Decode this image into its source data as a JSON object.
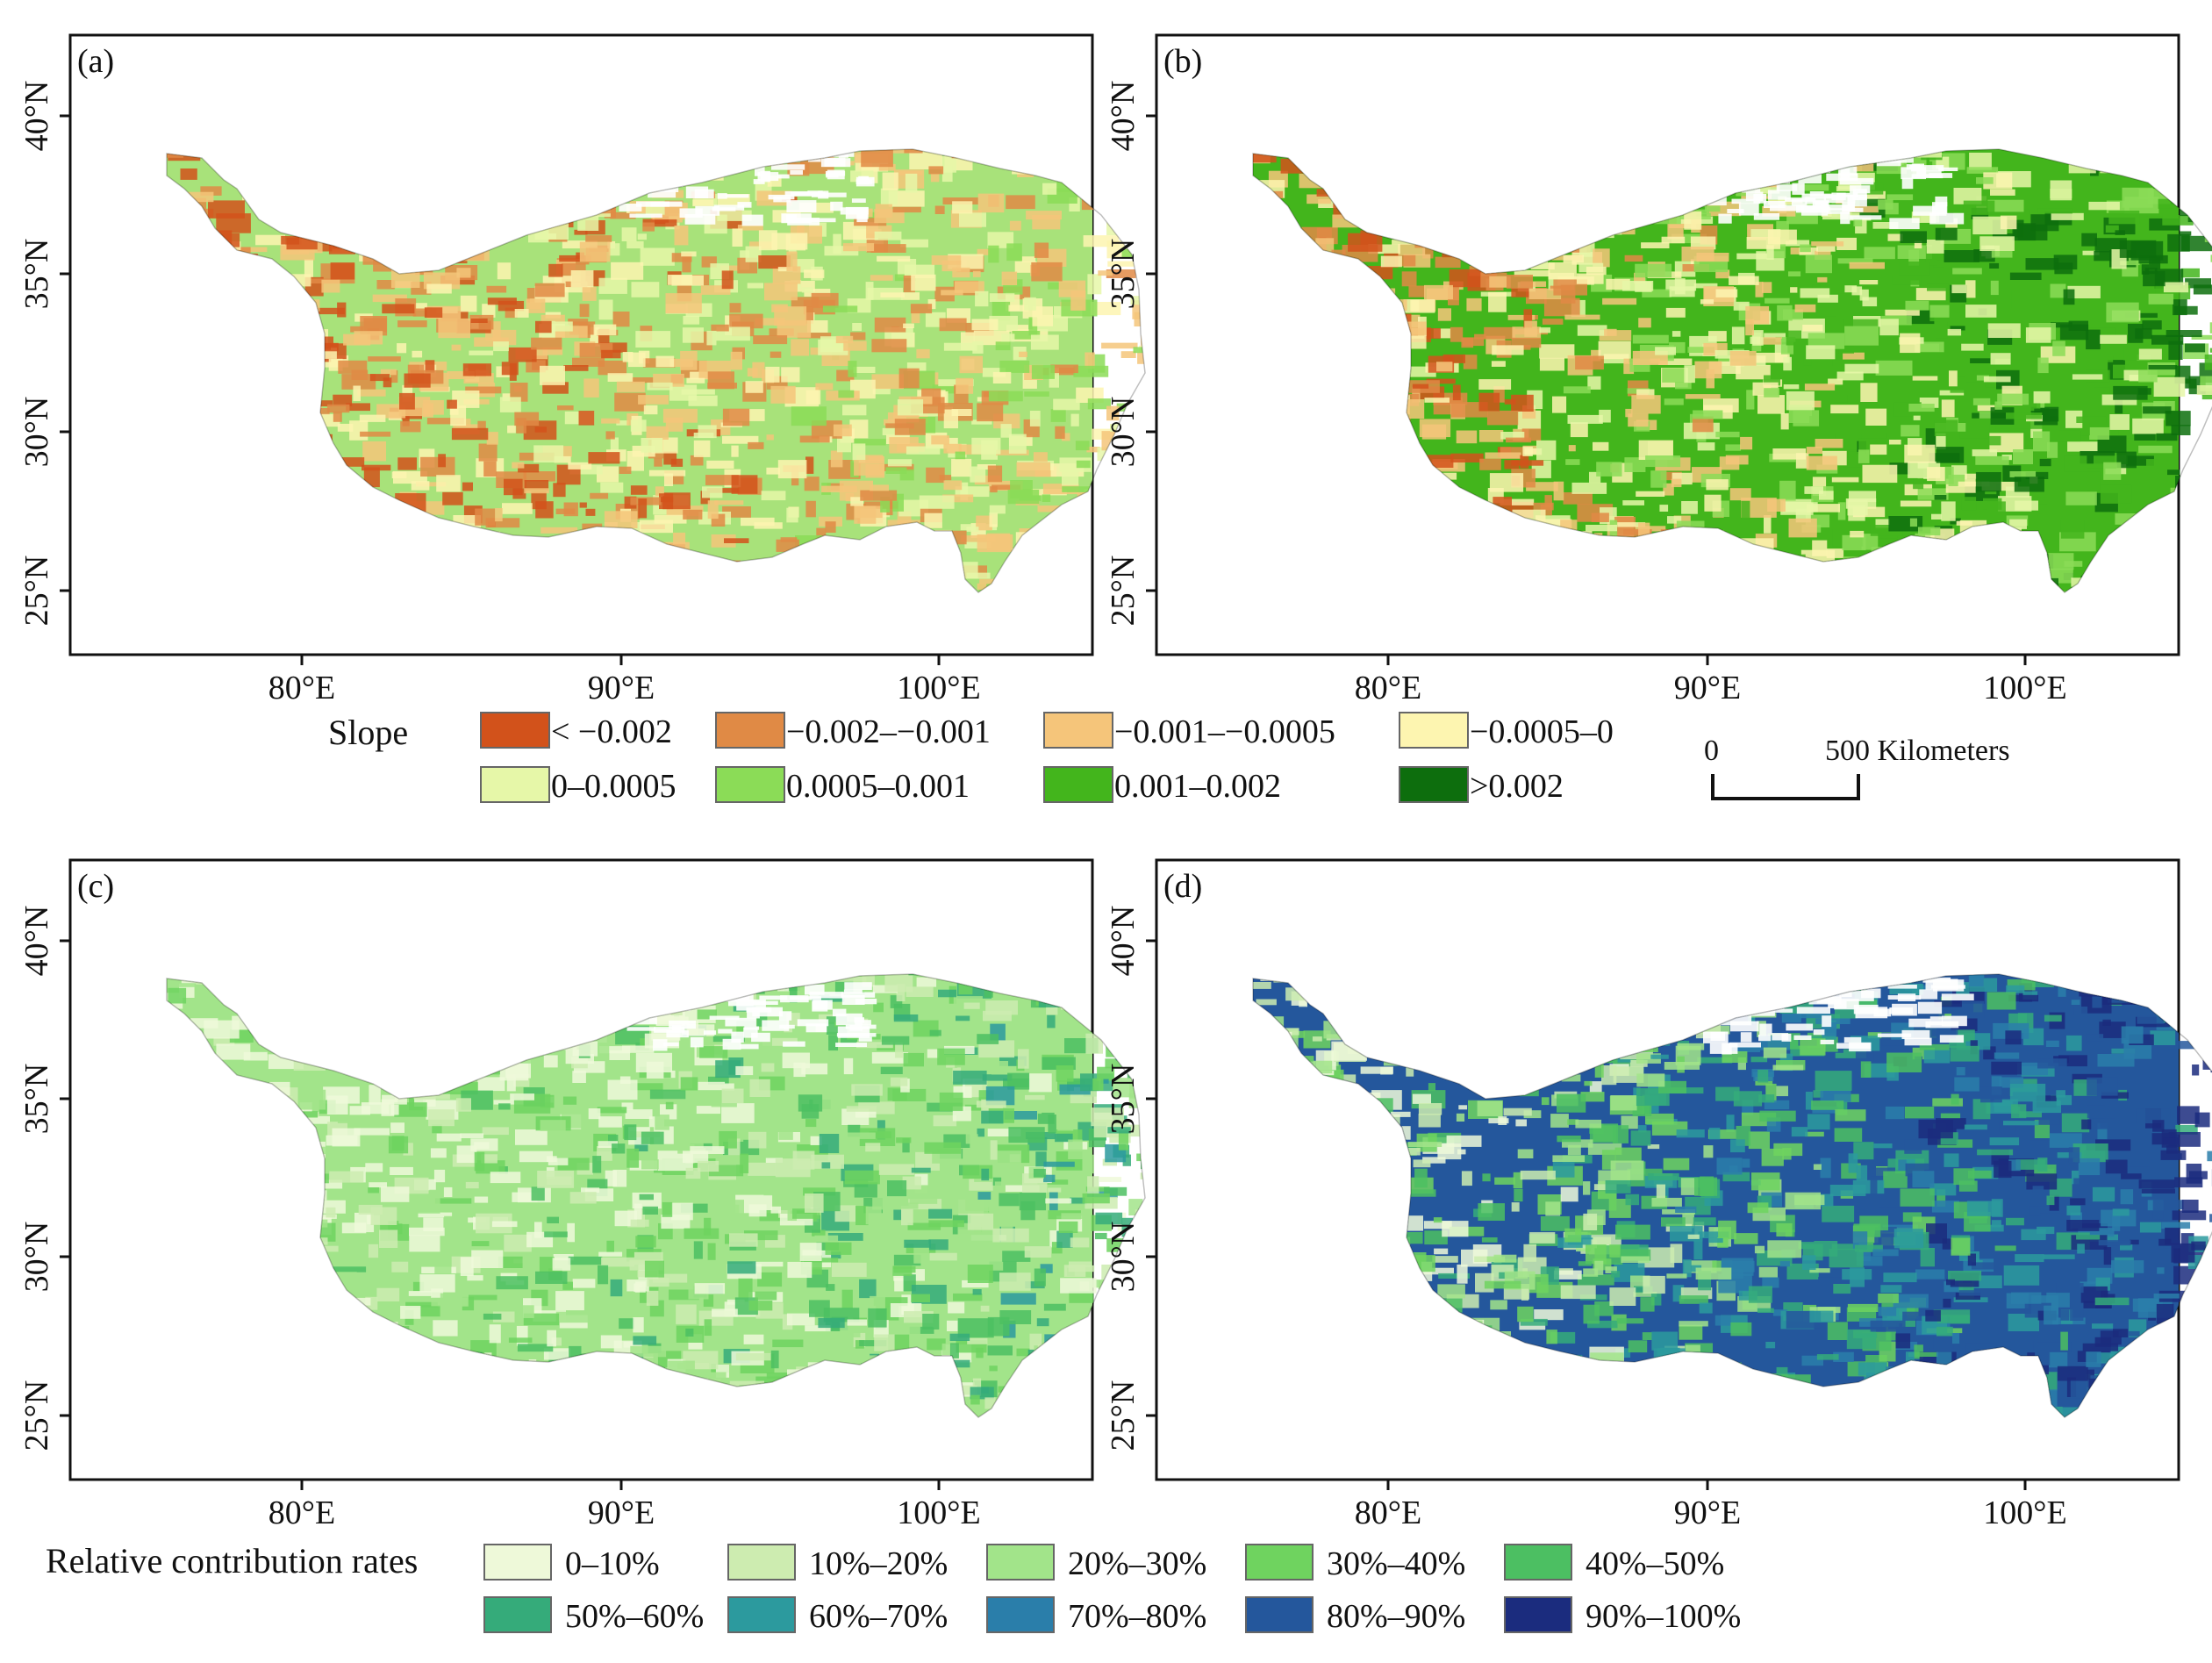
{
  "panels": [
    {
      "id": "a",
      "label": "(a)",
      "scheme": "slope",
      "intensity": 0.35
    },
    {
      "id": "b",
      "label": "(b)",
      "scheme": "slope",
      "intensity": 0.75
    },
    {
      "id": "c",
      "label": "(c)",
      "scheme": "contrib",
      "intensity": 0.3
    },
    {
      "id": "d",
      "label": "(d)",
      "scheme": "contrib",
      "intensity": 0.8
    }
  ],
  "axes": {
    "lat_labels": [
      "40°N",
      "35°N",
      "30°N",
      "25°N"
    ],
    "lon_labels": [
      "80°E",
      "90°E",
      "100°E"
    ]
  },
  "slope_legend": {
    "title": "Slope",
    "items": [
      {
        "label": "< −0.002",
        "color": "#d2521b"
      },
      {
        "label": "−0.002–−0.001",
        "color": "#e08a45"
      },
      {
        "label": "−0.001–−0.0005",
        "color": "#f5c57a"
      },
      {
        "label": "−0.0005–0",
        "color": "#fdf5b0"
      },
      {
        "label": "0–0.0005",
        "color": "#e6f7a8"
      },
      {
        "label": "0.0005–0.001",
        "color": "#8bdc57"
      },
      {
        "label": "0.001–0.002",
        "color": "#43b51c"
      },
      {
        "label": ">0.002",
        "color": "#0d6e0d"
      }
    ]
  },
  "scale_bar": {
    "zero": "0",
    "label": "500 Kilometers"
  },
  "contrib_legend": {
    "title": "Relative contribution rates",
    "items": [
      {
        "label": "0–10%",
        "color": "#eef9d9"
      },
      {
        "label": "10%–20%",
        "color": "#cdecb0"
      },
      {
        "label": "20%–30%",
        "color": "#a2e48a"
      },
      {
        "label": "30%–40%",
        "color": "#6fd35f"
      },
      {
        "label": "40%–50%",
        "color": "#4cbf62"
      },
      {
        "label": "50%–60%",
        "color": "#35ab7a"
      },
      {
        "label": "60%–70%",
        "color": "#2c9a9e"
      },
      {
        "label": "70%–80%",
        "color": "#2a7eaa"
      },
      {
        "label": "80%–90%",
        "color": "#24579c"
      },
      {
        "label": "90%–100%",
        "color": "#1b2c7e"
      }
    ]
  }
}
